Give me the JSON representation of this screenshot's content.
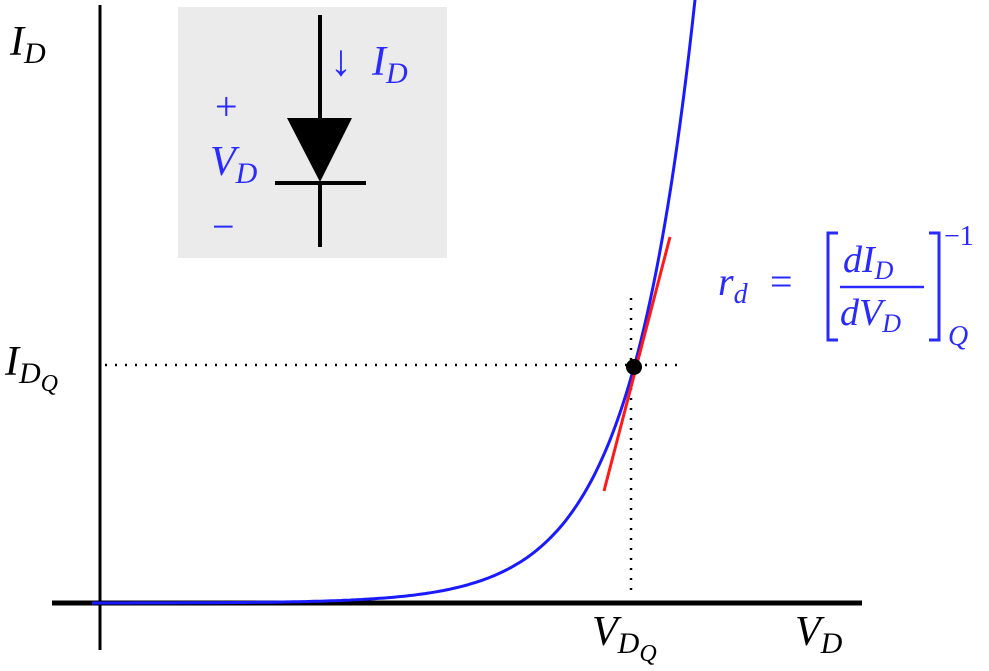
{
  "axes": {
    "y_label": {
      "main": "I",
      "sub": "D"
    },
    "x_label": {
      "main": "V",
      "sub": "D"
    }
  },
  "operating_point": {
    "current_label": {
      "main": "I",
      "sub": "D",
      "subsub": "Q"
    },
    "voltage_label": {
      "main": "V",
      "sub": "D",
      "subsub": "Q"
    }
  },
  "inset": {
    "current_arrow": "↓",
    "current_label": {
      "main": "I",
      "sub": "D"
    },
    "plus": "+",
    "voltage_label": {
      "main": "V",
      "sub": "D"
    },
    "minus": "−"
  },
  "formula": {
    "lhs": {
      "main": "r",
      "sub": "d"
    },
    "equals": "=",
    "numerator": {
      "main": "dI",
      "sub": "D"
    },
    "denominator": {
      "main": "dV",
      "sub": "D"
    },
    "exponent": "−1",
    "evaluated_at": "Q"
  }
}
